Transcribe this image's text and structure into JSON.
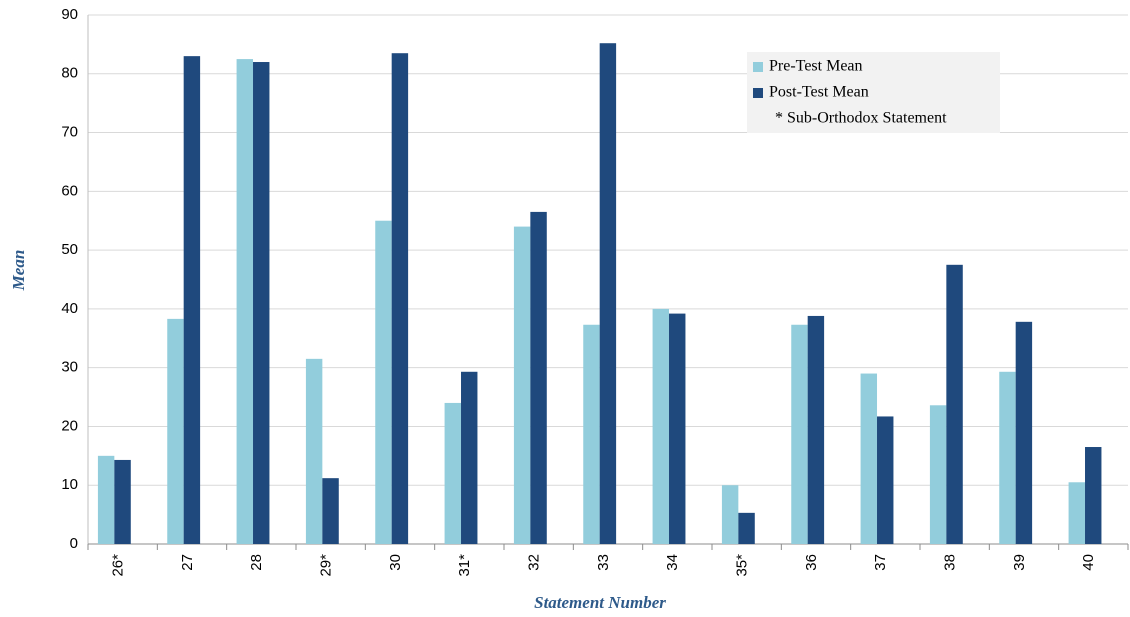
{
  "chart_data": {
    "type": "bar",
    "x_label": "Statement Number",
    "y_label": "Mean",
    "categories": [
      "26*",
      "27",
      "28",
      "29*",
      "30",
      "31*",
      "32",
      "33",
      "34",
      "35*",
      "36",
      "37",
      "38",
      "39",
      "40"
    ],
    "series": [
      {
        "name": "Pre-Test Mean",
        "color": "#92cddc",
        "values": [
          15,
          38.3,
          82.5,
          31.5,
          55,
          24,
          54,
          37.3,
          40,
          10,
          37.3,
          29,
          23.6,
          29.3,
          10.5
        ]
      },
      {
        "name": "Post-Test Mean",
        "color": "#1f497d",
        "values": [
          14.3,
          83,
          82,
          11.2,
          83.5,
          29.3,
          56.5,
          85.2,
          39.2,
          5.3,
          38.8,
          21.7,
          47.5,
          37.8,
          16.5
        ]
      }
    ],
    "legend_note": "* Sub-Orthodox Statement",
    "legend": "upper right",
    "ylim": [
      0,
      90
    ],
    "yticks": [
      0,
      10,
      20,
      30,
      40,
      50,
      60,
      70,
      80,
      90
    ],
    "grid": true
  }
}
